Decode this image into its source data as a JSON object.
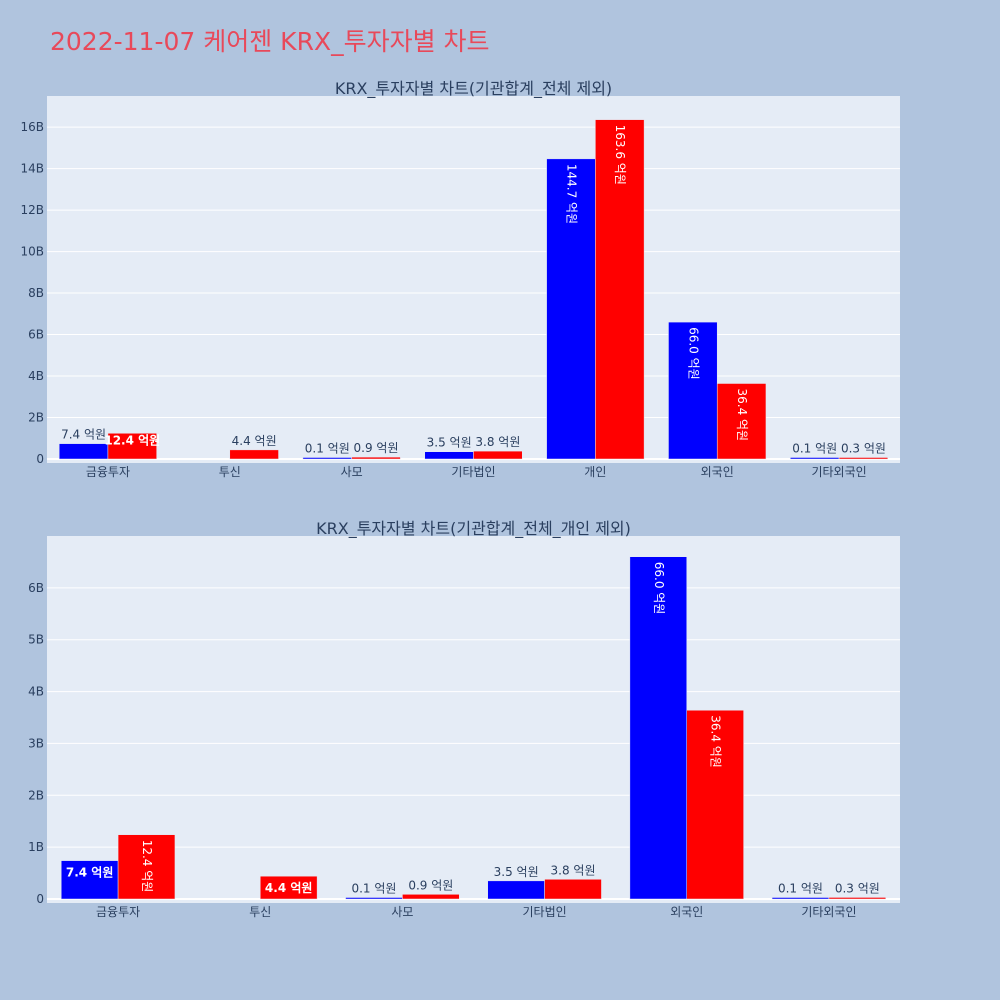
{
  "page": {
    "title": "2022-11-07 케어젠 KRX_투자자별 차트",
    "title_color": "#e8495a",
    "background": "#b0c4de",
    "plot_background": "#e5ecf6"
  },
  "chart_data": [
    {
      "type": "bar",
      "title": "KRX_투자자별 차트(기관합계_전체 제외)",
      "xlabel": "",
      "ylabel": "",
      "categories": [
        "금융투자",
        "투신",
        "사모",
        "기타법인",
        "개인",
        "외국인",
        "기타외국인"
      ],
      "y_tick_values": [
        0,
        2000000000,
        4000000000,
        6000000000,
        8000000000,
        10000000000,
        12000000000,
        14000000000,
        16000000000
      ],
      "y_tick_labels": [
        "0",
        "2B",
        "4B",
        "6B",
        "8B",
        "10B",
        "12B",
        "14B",
        "16B"
      ],
      "ylim": [
        0,
        17500000000
      ],
      "grid": true,
      "series": [
        {
          "color": "#0000ff",
          "values": [
            740000000,
            0,
            10000000,
            350000000,
            14470000000,
            6600000000,
            10000000
          ],
          "labels": [
            "7.4 억원",
            "",
            "0.1 억원",
            "3.5 억원",
            "144.7 억원",
            "66.0 억원",
            "0.1 억원"
          ],
          "label_pos": [
            "outside",
            "",
            "outside",
            "outside",
            "inside",
            "inside",
            "outside"
          ]
        },
        {
          "color": "#ff0000",
          "values": [
            1240000000,
            440000000,
            90000000,
            380000000,
            16360000000,
            3640000000,
            30000000
          ],
          "labels": [
            "12.4 억원",
            "4.4 억원",
            "0.9 억원",
            "3.8 억원",
            "163.6 억원",
            "36.4 억원",
            "0.3 억원"
          ],
          "label_pos": [
            "inside-small",
            "outside",
            "outside",
            "outside",
            "inside",
            "inside",
            "outside"
          ]
        }
      ]
    },
    {
      "type": "bar",
      "title": "KRX_투자자별 차트(기관합계_전체_개인 제외)",
      "xlabel": "",
      "ylabel": "",
      "categories": [
        "금융투자",
        "투신",
        "사모",
        "기타법인",
        "외국인",
        "기타외국인"
      ],
      "y_tick_values": [
        0,
        1000000000,
        2000000000,
        3000000000,
        4000000000,
        5000000000,
        6000000000
      ],
      "y_tick_labels": [
        "0",
        "1B",
        "2B",
        "3B",
        "4B",
        "5B",
        "6B"
      ],
      "ylim": [
        0,
        7000000000
      ],
      "grid": true,
      "series": [
        {
          "color": "#0000ff",
          "values": [
            740000000,
            0,
            10000000,
            350000000,
            6600000000,
            10000000
          ],
          "labels": [
            "7.4 억원",
            "",
            "0.1 억원",
            "3.5 억원",
            "66.0 억원",
            "0.1 억원"
          ],
          "label_pos": [
            "inside-h",
            "",
            "outside",
            "outside",
            "inside",
            "outside"
          ]
        },
        {
          "color": "#ff0000",
          "values": [
            1240000000,
            440000000,
            90000000,
            380000000,
            3640000000,
            30000000
          ],
          "labels": [
            "12.4 억원",
            "4.4 억원",
            "0.9 억원",
            "3.8 억원",
            "36.4 억원",
            "0.3 억원"
          ],
          "label_pos": [
            "inside",
            "inside-h",
            "outside",
            "outside",
            "inside",
            "outside"
          ]
        }
      ]
    }
  ]
}
